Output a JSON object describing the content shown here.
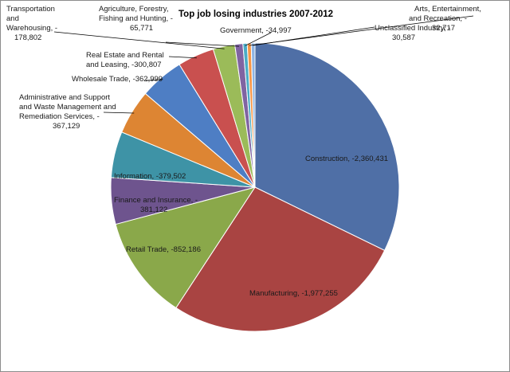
{
  "chart_data": {
    "type": "pie",
    "title": "Top job losing industries 2007-2012",
    "slices": [
      {
        "label": "Construction",
        "value": -2360431,
        "display": "Construction, -2,360,431",
        "color": "#4F6FA6"
      },
      {
        "label": "Manufacturing",
        "value": -1977255,
        "display": "Manufacturing, -1,977,255",
        "color": "#A94442"
      },
      {
        "label": "Retail Trade",
        "value": -852186,
        "display": "Retail Trade, -852,186",
        "color": "#8AA84A"
      },
      {
        "label": "Finance and Insurance",
        "value": -381122,
        "display": "Finance and Insurance, -381,122",
        "color": "#6E548E"
      },
      {
        "label": "Information",
        "value": -379502,
        "display": "Information, -379,502",
        "color": "#3E93A6"
      },
      {
        "label": "Administrative and Support and Waste Management and Remediation Services",
        "value": -367129,
        "display": "Administrative and Support and Waste Management and Remediation Services, -367,129",
        "color": "#DD8533"
      },
      {
        "label": "Wholesale Trade",
        "value": -362999,
        "display": "Wholesale Trade, -362,999",
        "color": "#4E7EC4"
      },
      {
        "label": "Real Estate and Rental and Leasing",
        "value": -300807,
        "display": "Real Estate and Rental and Leasing, -300,807",
        "color": "#C9504F"
      },
      {
        "label": "Transportation and Warehousing",
        "value": -178802,
        "display": "Transportation and Warehousing, -178,802",
        "color": "#9BBB59"
      },
      {
        "label": "Agriculture, Forestry, Fishing and Hunting",
        "value": -65771,
        "display": "Agriculture, Forestry, Fishing and Hunting, -65,771",
        "color": "#8064A2"
      },
      {
        "label": "Government",
        "value": -34997,
        "display": "Government, -34,997",
        "color": "#4BACC6"
      },
      {
        "label": "Arts, Entertainment, and Recreation",
        "value": -32717,
        "display": "Arts, Entertainment, and Recreation, -32,717",
        "color": "#F79646"
      },
      {
        "label": "Unclassified Industry",
        "value": -30587,
        "display": "Unclassified Industry, -30,587",
        "color": "#8EB4E3"
      }
    ],
    "legend": "none",
    "data_labels": "category name and value, with leader lines for small slices"
  }
}
